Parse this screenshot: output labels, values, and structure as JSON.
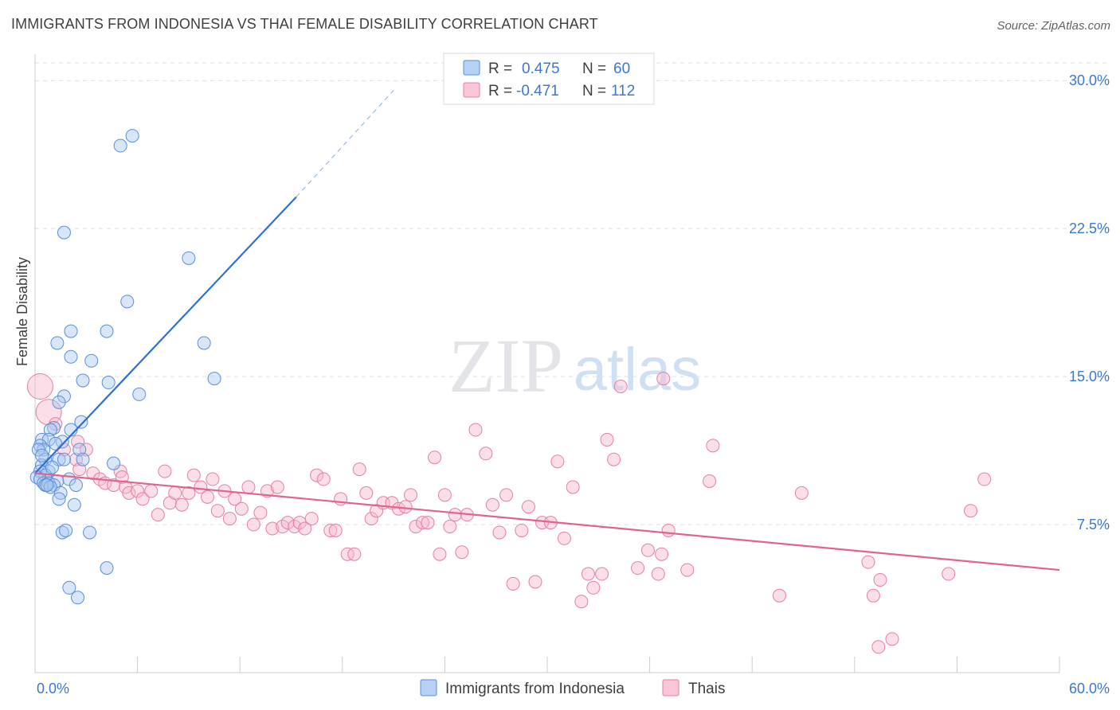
{
  "header": {
    "title": "IMMIGRANTS FROM INDONESIA VS THAI FEMALE DISABILITY CORRELATION CHART",
    "source": "Source: ZipAtlas.com"
  },
  "watermark": {
    "zip": "ZIP",
    "atlas": "atlas"
  },
  "legend_box": [
    {
      "r_label": "R =",
      "r_value": "0.475",
      "n_label": "N =",
      "n_value": "60"
    },
    {
      "r_label": "R =",
      "r_value": "-0.471",
      "n_label": "N =",
      "n_value": "112"
    }
  ],
  "bottom_legend": [
    "Immigrants from Indonesia",
    "Thais"
  ],
  "colors": {
    "blue_fill": "#a8c8f0",
    "blue_stroke": "#5a8fd8",
    "blue_line": "#2f6fd4",
    "pink_fill": "#f6b8cc",
    "pink_stroke": "#e57fa3",
    "pink_line": "#e0648f",
    "value_text": "#3b78d1"
  },
  "chart_data": {
    "type": "scatter",
    "title": "IMMIGRANTS FROM INDONESIA VS THAI FEMALE DISABILITY CORRELATION CHART",
    "xlabel": "",
    "ylabel": "Female Disability",
    "xlim": [
      0,
      60
    ],
    "ylim": [
      0,
      31.5
    ],
    "x_ticks": [
      "0.0%",
      "60.0%"
    ],
    "y_ticks": [
      {
        "value": 7.5,
        "label": "7.5%"
      },
      {
        "value": 15,
        "label": "15.0%"
      },
      {
        "value": 22.5,
        "label": "22.5%"
      },
      {
        "value": 30,
        "label": "30.0%"
      }
    ],
    "grid": true,
    "series": [
      {
        "name": "Immigrants from Indonesia",
        "r": 0.475,
        "n": 60,
        "trend": {
          "x0": 0.0,
          "y0": 10.1,
          "x1": 15.3,
          "y1": 24.1,
          "dash_to_x": 21.0,
          "dash_to_y": 29.5
        },
        "points": [
          [
            5.7,
            27.2
          ],
          [
            5.0,
            26.7
          ],
          [
            1.7,
            22.3
          ],
          [
            9.0,
            21.0
          ],
          [
            5.4,
            18.8
          ],
          [
            2.1,
            17.3
          ],
          [
            4.2,
            17.3
          ],
          [
            1.3,
            16.7
          ],
          [
            9.9,
            16.7
          ],
          [
            2.1,
            16.0
          ],
          [
            3.3,
            15.8
          ],
          [
            2.8,
            14.8
          ],
          [
            4.3,
            14.7
          ],
          [
            10.5,
            14.9
          ],
          [
            6.1,
            14.1
          ],
          [
            1.7,
            14.0
          ],
          [
            1.4,
            13.7
          ],
          [
            2.7,
            12.7
          ],
          [
            1.1,
            12.4
          ],
          [
            2.1,
            12.3
          ],
          [
            0.9,
            12.3
          ],
          [
            0.4,
            11.8
          ],
          [
            1.6,
            11.7
          ],
          [
            0.8,
            11.8
          ],
          [
            0.3,
            11.5
          ],
          [
            1.2,
            11.6
          ],
          [
            0.5,
            11.3
          ],
          [
            2.6,
            11.3
          ],
          [
            0.2,
            11.3
          ],
          [
            0.6,
            10.8
          ],
          [
            1.4,
            10.8
          ],
          [
            1.7,
            10.8
          ],
          [
            2.8,
            10.8
          ],
          [
            4.6,
            10.6
          ],
          [
            0.4,
            10.5
          ],
          [
            0.8,
            10.2
          ],
          [
            0.3,
            10.2
          ],
          [
            0.6,
            10.0
          ],
          [
            0.1,
            9.9
          ],
          [
            0.3,
            9.8
          ],
          [
            2.0,
            9.8
          ],
          [
            1.3,
            9.7
          ],
          [
            0.5,
            9.6
          ],
          [
            0.8,
            9.6
          ],
          [
            0.6,
            9.5
          ],
          [
            1.1,
            9.5
          ],
          [
            0.9,
            9.4
          ],
          [
            2.4,
            9.5
          ],
          [
            0.7,
            9.5
          ],
          [
            1.5,
            9.1
          ],
          [
            1.4,
            8.8
          ],
          [
            2.3,
            8.5
          ],
          [
            1.6,
            7.1
          ],
          [
            1.8,
            7.2
          ],
          [
            3.2,
            7.1
          ],
          [
            4.2,
            5.3
          ],
          [
            2.0,
            4.3
          ],
          [
            2.5,
            3.8
          ],
          [
            0.4,
            11.0
          ],
          [
            1.0,
            10.4
          ]
        ]
      },
      {
        "name": "Thais",
        "r": -0.471,
        "n": 112,
        "trend": {
          "x0": 0.0,
          "y0": 10.1,
          "x1": 60.0,
          "y1": 5.2
        },
        "points": [
          [
            0.3,
            14.5
          ],
          [
            0.8,
            13.2
          ],
          [
            1.2,
            12.6
          ],
          [
            2.5,
            11.7
          ],
          [
            1.7,
            11.3
          ],
          [
            3.0,
            11.3
          ],
          [
            2.4,
            10.8
          ],
          [
            3.4,
            10.1
          ],
          [
            2.6,
            10.3
          ],
          [
            3.8,
            9.8
          ],
          [
            4.1,
            9.6
          ],
          [
            4.6,
            9.5
          ],
          [
            5.0,
            10.2
          ],
          [
            5.1,
            9.9
          ],
          [
            5.3,
            9.4
          ],
          [
            5.5,
            9.1
          ],
          [
            6.0,
            9.2
          ],
          [
            6.3,
            8.8
          ],
          [
            6.8,
            9.2
          ],
          [
            7.2,
            8.0
          ],
          [
            7.6,
            10.2
          ],
          [
            7.9,
            8.6
          ],
          [
            8.2,
            9.1
          ],
          [
            8.6,
            8.5
          ],
          [
            9.0,
            9.1
          ],
          [
            9.3,
            10.0
          ],
          [
            9.7,
            9.4
          ],
          [
            10.1,
            8.9
          ],
          [
            10.4,
            9.8
          ],
          [
            10.7,
            8.2
          ],
          [
            11.1,
            9.2
          ],
          [
            11.4,
            7.8
          ],
          [
            11.7,
            8.8
          ],
          [
            12.1,
            8.3
          ],
          [
            12.5,
            9.4
          ],
          [
            12.8,
            7.5
          ],
          [
            13.2,
            8.1
          ],
          [
            13.6,
            9.2
          ],
          [
            13.9,
            7.3
          ],
          [
            14.2,
            9.4
          ],
          [
            14.5,
            7.4
          ],
          [
            14.8,
            7.6
          ],
          [
            15.2,
            7.4
          ],
          [
            15.5,
            7.6
          ],
          [
            15.8,
            7.3
          ],
          [
            16.2,
            7.8
          ],
          [
            16.5,
            10.0
          ],
          [
            16.9,
            9.8
          ],
          [
            17.3,
            7.2
          ],
          [
            17.6,
            7.2
          ],
          [
            17.9,
            8.8
          ],
          [
            18.3,
            6.0
          ],
          [
            18.7,
            6.0
          ],
          [
            19.0,
            10.3
          ],
          [
            19.4,
            9.1
          ],
          [
            19.7,
            7.8
          ],
          [
            20.0,
            8.2
          ],
          [
            20.4,
            8.6
          ],
          [
            20.9,
            8.6
          ],
          [
            21.3,
            8.3
          ],
          [
            21.7,
            8.4
          ],
          [
            22.0,
            9.0
          ],
          [
            22.3,
            7.4
          ],
          [
            22.7,
            7.6
          ],
          [
            23.0,
            7.6
          ],
          [
            23.4,
            10.9
          ],
          [
            23.7,
            6.0
          ],
          [
            24.0,
            9.0
          ],
          [
            24.3,
            7.4
          ],
          [
            24.6,
            8.0
          ],
          [
            25.0,
            6.1
          ],
          [
            25.3,
            8.0
          ],
          [
            25.8,
            12.3
          ],
          [
            26.4,
            11.1
          ],
          [
            26.8,
            8.5
          ],
          [
            27.2,
            7.1
          ],
          [
            27.6,
            9.0
          ],
          [
            28.0,
            4.5
          ],
          [
            28.5,
            7.2
          ],
          [
            28.9,
            8.4
          ],
          [
            29.3,
            4.6
          ],
          [
            29.7,
            7.6
          ],
          [
            30.2,
            7.6
          ],
          [
            30.6,
            10.7
          ],
          [
            31.0,
            6.8
          ],
          [
            31.5,
            9.4
          ],
          [
            32.0,
            3.6
          ],
          [
            32.4,
            5.0
          ],
          [
            32.7,
            4.3
          ],
          [
            33.2,
            5.0
          ],
          [
            33.5,
            11.8
          ],
          [
            33.9,
            10.8
          ],
          [
            34.3,
            14.5
          ],
          [
            35.3,
            5.3
          ],
          [
            35.9,
            6.2
          ],
          [
            36.5,
            5.0
          ],
          [
            36.7,
            6.0
          ],
          [
            36.8,
            14.9
          ],
          [
            37.1,
            7.2
          ],
          [
            38.2,
            5.2
          ],
          [
            39.5,
            9.7
          ],
          [
            39.7,
            11.5
          ],
          [
            43.6,
            3.9
          ],
          [
            44.9,
            9.1
          ],
          [
            48.8,
            5.6
          ],
          [
            49.1,
            3.9
          ],
          [
            49.5,
            4.7
          ],
          [
            49.4,
            1.3
          ],
          [
            50.2,
            1.7
          ],
          [
            53.5,
            5.0
          ],
          [
            54.8,
            8.2
          ],
          [
            55.6,
            9.8
          ]
        ]
      }
    ]
  }
}
